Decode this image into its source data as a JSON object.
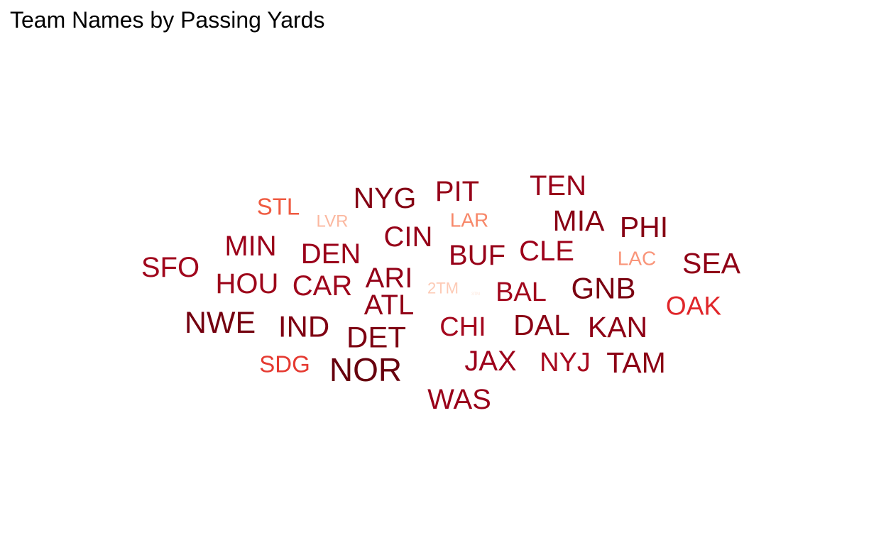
{
  "chart_data": {
    "type": "wordcloud",
    "title": "Team Names by Passing Yards",
    "color_scale": [
      "#fcbba1",
      "#fc9272",
      "#fb6a4a",
      "#ef3b2c",
      "#cb181d",
      "#a50f15",
      "#67000d"
    ],
    "words": [
      {
        "text": "NOR",
        "color": "#67000d"
      },
      {
        "text": "NWE",
        "color": "#74000f"
      },
      {
        "text": "GNB",
        "color": "#7a0010"
      },
      {
        "text": "DET",
        "color": "#7d0011"
      },
      {
        "text": "IND",
        "color": "#7f0012"
      },
      {
        "text": "NYG",
        "color": "#840013"
      },
      {
        "text": "PHI",
        "color": "#860013"
      },
      {
        "text": "MIA",
        "color": "#880014"
      },
      {
        "text": "DAL",
        "color": "#8a0014"
      },
      {
        "text": "TAM",
        "color": "#8c0015"
      },
      {
        "text": "KAN",
        "color": "#8e0015"
      },
      {
        "text": "SEA",
        "color": "#900016"
      },
      {
        "text": "ATL",
        "color": "#920016"
      },
      {
        "text": "ARI",
        "color": "#930017"
      },
      {
        "text": "PIT",
        "color": "#950017"
      },
      {
        "text": "CIN",
        "color": "#960018"
      },
      {
        "text": "BUF",
        "color": "#970018"
      },
      {
        "text": "TEN",
        "color": "#980018"
      },
      {
        "text": "WAS",
        "color": "#990019"
      },
      {
        "text": "DEN",
        "color": "#9a0019"
      },
      {
        "text": "MIN",
        "color": "#9b0019"
      },
      {
        "text": "JAX",
        "color": "#9c001a"
      },
      {
        "text": "CLE",
        "color": "#9d001a"
      },
      {
        "text": "HOU",
        "color": "#9d051a"
      },
      {
        "text": "CAR",
        "color": "#9e051b"
      },
      {
        "text": "SFO",
        "color": "#a0061c"
      },
      {
        "text": "BAL",
        "color": "#a1061c"
      },
      {
        "text": "CHI",
        "color": "#a4071d"
      },
      {
        "text": "NYJ",
        "color": "#a7081e"
      },
      {
        "text": "OAK",
        "color": "#e0262a"
      },
      {
        "text": "SDG",
        "color": "#e53a31"
      },
      {
        "text": "STL",
        "color": "#ef5a40"
      },
      {
        "text": "LAR",
        "color": "#f7886a"
      },
      {
        "text": "LAC",
        "color": "#f9957a"
      },
      {
        "text": "LVR",
        "color": "#fbb8a0"
      },
      {
        "text": "2TM",
        "color": "#fdcab5"
      },
      {
        "text": "3TM",
        "color": "#fee5da"
      }
    ]
  }
}
